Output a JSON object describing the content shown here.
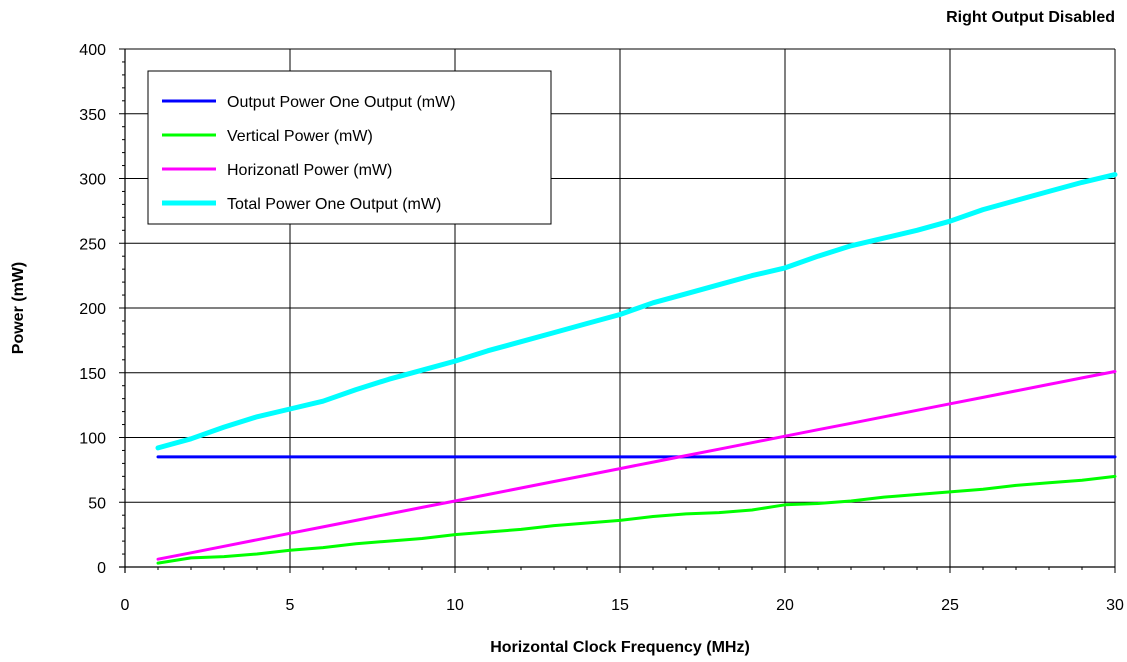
{
  "chart_data": {
    "type": "line",
    "title": "Right Output Disabled",
    "xlabel": "Horizontal Clock Frequency (MHz)",
    "ylabel": "Power (mW)",
    "xlim": [
      0,
      30
    ],
    "ylim": [
      0,
      400
    ],
    "xticks": [
      0,
      5,
      10,
      15,
      20,
      25,
      30
    ],
    "yticks": [
      0,
      50,
      100,
      150,
      200,
      250,
      300,
      350,
      400
    ],
    "grid": true,
    "legend_position": "top-left",
    "x": [
      1,
      2,
      3,
      4,
      5,
      6,
      7,
      8,
      9,
      10,
      11,
      12,
      13,
      14,
      15,
      16,
      17,
      18,
      19,
      20,
      21,
      22,
      23,
      24,
      25,
      26,
      27,
      28,
      29,
      30
    ],
    "series": [
      {
        "name": "Output Power One Output (mW)",
        "color": "#0000ff",
        "values": [
          85,
          85,
          85,
          85,
          85,
          85,
          85,
          85,
          85,
          85,
          85,
          85,
          85,
          85,
          85,
          85,
          85,
          85,
          85,
          85,
          85,
          85,
          85,
          85,
          85,
          85,
          85,
          85,
          85,
          85
        ]
      },
      {
        "name": "Vertical Power (mW)",
        "color": "#00ff00",
        "values": [
          3,
          7,
          8,
          10,
          13,
          15,
          18,
          20,
          22,
          25,
          27,
          29,
          32,
          34,
          36,
          39,
          41,
          42,
          44,
          48,
          49,
          51,
          54,
          56,
          58,
          60,
          63,
          65,
          67,
          70
        ]
      },
      {
        "name": "Horizonatl Power (mW)",
        "color": "#ff00ff",
        "values": [
          6,
          11,
          16,
          21,
          26,
          31,
          36,
          41,
          46,
          51,
          56,
          61,
          66,
          71,
          76,
          81,
          86,
          91,
          96,
          101,
          106,
          111,
          116,
          121,
          126,
          131,
          136,
          141,
          146,
          151
        ]
      },
      {
        "name": "Total Power One Output (mW)",
        "color": "#00ffff",
        "values": [
          92,
          99,
          108,
          116,
          122,
          128,
          137,
          145,
          152,
          159,
          167,
          174,
          181,
          188,
          195,
          204,
          211,
          218,
          225,
          231,
          240,
          248,
          254,
          260,
          267,
          276,
          283,
          290,
          297,
          303
        ]
      }
    ]
  }
}
